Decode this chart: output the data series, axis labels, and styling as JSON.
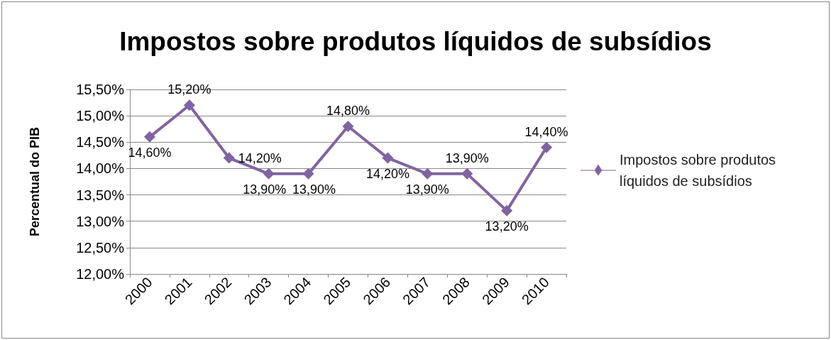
{
  "chart_data": {
    "type": "line",
    "title": "Impostos sobre produtos líquidos de subsídios",
    "ylabel": "Percentual do PIB",
    "categories": [
      "2000",
      "2001",
      "2002",
      "2003",
      "2004",
      "2005",
      "2006",
      "2007",
      "2008",
      "2009",
      "2010"
    ],
    "series": [
      {
        "name": "Impostos sobre produtos líquidos de subsídios",
        "color": "#8064a2",
        "values": [
          14.6,
          15.2,
          14.2,
          13.9,
          13.9,
          14.8,
          14.2,
          13.9,
          13.9,
          13.2,
          14.4
        ],
        "value_labels": [
          "14,60%",
          "15,20%",
          "14,20%",
          "13,90%",
          "13,90%",
          "14,80%",
          "14,20%",
          "13,90%",
          "13,90%",
          "13,20%",
          "14,40%"
        ]
      }
    ],
    "ylim": [
      12,
      15.5
    ],
    "yticks": [
      {
        "value": 12,
        "label": "12,00%"
      },
      {
        "value": 12.5,
        "label": "12,50%"
      },
      {
        "value": 13,
        "label": "13,00%"
      },
      {
        "value": 13.5,
        "label": "13,50%"
      },
      {
        "value": 14,
        "label": "14,00%"
      },
      {
        "value": 14.5,
        "label": "14,50%"
      },
      {
        "value": 15,
        "label": "15,00%"
      },
      {
        "value": 15.5,
        "label": "15,50%"
      }
    ],
    "grid": "y",
    "legend": "right",
    "marker": "diamond",
    "line_style": "solid"
  }
}
